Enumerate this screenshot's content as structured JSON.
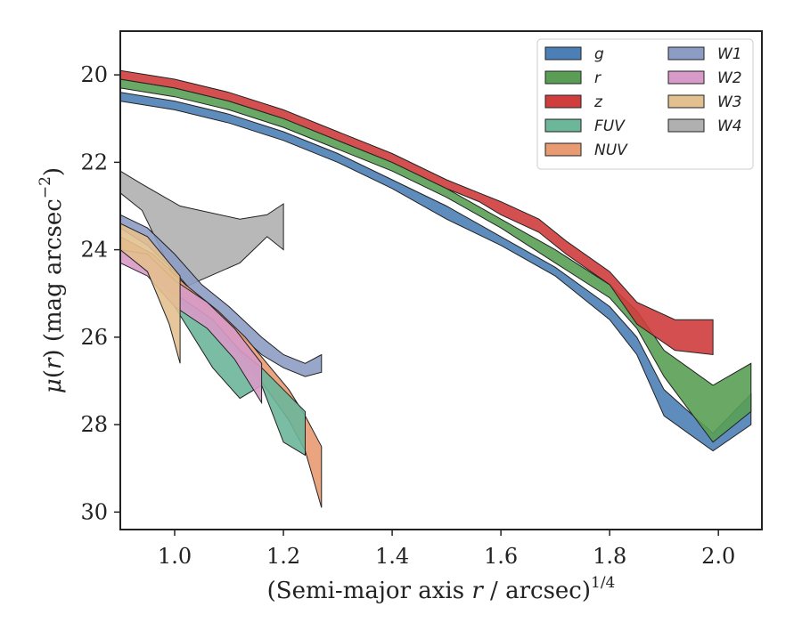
{
  "chart_data": {
    "type": "area",
    "xlabel_html": "(Semi-major axis <tspan font-style=\"italic\">r</tspan> / arcsec)<tspan dy=\"-12\" font-size=\"17\">1/4</tspan>",
    "xlabel": "(Semi-major axis r / arcsec)1/4",
    "ylabel": "μ(r) (mag arcsec−2)",
    "xlim": [
      0.9,
      2.08
    ],
    "ylim": [
      30.4,
      19.0
    ],
    "y_inverted": true,
    "grid": false,
    "x_ticks": [
      1.0,
      1.2,
      1.4,
      1.6,
      1.8,
      2.0
    ],
    "x_tick_labels": [
      "1.0",
      "1.2",
      "1.4",
      "1.6",
      "1.8",
      "2.0"
    ],
    "y_ticks": [
      20,
      22,
      24,
      26,
      28,
      30
    ],
    "y_tick_labels": [
      "20",
      "22",
      "24",
      "26",
      "28",
      "30"
    ],
    "legend": {
      "placement": "top-right",
      "columns": 2
    },
    "series": [
      {
        "name": "W4",
        "color": "#b0b0b0",
        "x": [
          0.9,
          0.94,
          1.01,
          1.12,
          1.17,
          1.2
        ],
        "lower": [
          22.2,
          22.5,
          23.0,
          23.3,
          23.2,
          22.95
        ],
        "upper": [
          22.7,
          23.1,
          24.9,
          24.3,
          23.7,
          24.0
        ]
      },
      {
        "name": "W1",
        "color": "#8d9cc4",
        "x": [
          0.9,
          0.95,
          1.0,
          1.05,
          1.1,
          1.16,
          1.2,
          1.24,
          1.27
        ],
        "lower": [
          23.2,
          23.5,
          24.1,
          24.8,
          25.3,
          26.0,
          26.4,
          26.6,
          26.4
        ],
        "upper": [
          23.5,
          23.9,
          24.5,
          25.2,
          25.7,
          26.4,
          26.7,
          26.9,
          26.8
        ]
      },
      {
        "name": "NUV",
        "color": "#e89a72",
        "x": [
          0.9,
          0.96,
          1.02,
          1.08,
          1.13,
          1.17,
          1.21,
          1.24,
          1.27
        ],
        "lower": [
          23.7,
          24.1,
          24.8,
          25.4,
          26.0,
          26.6,
          27.2,
          27.8,
          28.5
        ],
        "upper": [
          24.0,
          24.6,
          25.3,
          25.9,
          26.5,
          27.2,
          27.9,
          28.6,
          29.9
        ]
      },
      {
        "name": "FUV",
        "color": "#6cb69a",
        "x": [
          1.0,
          1.07,
          1.12,
          1.16,
          1.2,
          1.24
        ],
        "lower": [
          25.0,
          25.6,
          26.3,
          26.7,
          27.2,
          27.7
        ],
        "upper": [
          25.3,
          26.7,
          27.4,
          27.1,
          28.4,
          28.7
        ]
      },
      {
        "name": "W2",
        "color": "#d89ac8",
        "x": [
          0.9,
          0.95,
          1.0,
          1.06,
          1.11,
          1.16
        ],
        "lower": [
          24.0,
          24.1,
          24.7,
          25.2,
          25.8,
          26.6
        ],
        "upper": [
          24.3,
          24.6,
          25.3,
          25.8,
          26.5,
          27.5
        ]
      },
      {
        "name": "W3",
        "color": "#e3c090",
        "x": [
          0.9,
          0.95,
          0.99,
          1.01
        ],
        "lower": [
          23.4,
          23.7,
          24.3,
          24.6
        ],
        "upper": [
          24.0,
          24.5,
          25.7,
          26.6
        ]
      },
      {
        "name": "g",
        "color": "#4c7fb5",
        "x": [
          0.9,
          1.0,
          1.1,
          1.2,
          1.3,
          1.4,
          1.5,
          1.6,
          1.7,
          1.8,
          1.85,
          1.9,
          1.99,
          2.06
        ],
        "lower": [
          20.4,
          20.6,
          20.9,
          21.3,
          21.8,
          22.4,
          23.0,
          23.7,
          24.4,
          25.3,
          26.0,
          27.2,
          28.2,
          27.3
        ],
        "upper": [
          20.6,
          20.8,
          21.1,
          21.5,
          22.0,
          22.6,
          23.3,
          23.9,
          24.6,
          25.6,
          26.4,
          27.8,
          28.6,
          28.0
        ]
      },
      {
        "name": "r",
        "color": "#5a9e55",
        "x": [
          0.9,
          1.0,
          1.1,
          1.2,
          1.3,
          1.4,
          1.5,
          1.6,
          1.7,
          1.8,
          1.85,
          1.9,
          1.99,
          2.06
        ],
        "lower": [
          20.1,
          20.3,
          20.6,
          21.0,
          21.5,
          22.0,
          22.6,
          23.3,
          24.0,
          24.8,
          25.4,
          26.3,
          27.1,
          26.6
        ],
        "upper": [
          20.3,
          20.5,
          20.8,
          21.2,
          21.7,
          22.2,
          22.8,
          23.5,
          24.3,
          25.1,
          25.8,
          26.9,
          28.4,
          27.7
        ]
      },
      {
        "name": "z",
        "color": "#cf3d3d",
        "x": [
          0.9,
          1.0,
          1.1,
          1.2,
          1.3,
          1.4,
          1.5,
          1.56,
          1.6,
          1.67,
          1.72,
          1.8,
          1.85,
          1.92,
          1.99
        ],
        "lower": [
          19.9,
          20.1,
          20.4,
          20.8,
          21.3,
          21.8,
          22.4,
          22.7,
          22.9,
          23.3,
          23.8,
          24.5,
          25.2,
          25.6,
          25.6
        ],
        "upper": [
          20.1,
          20.3,
          20.6,
          21.0,
          21.5,
          22.0,
          22.6,
          22.9,
          23.2,
          23.6,
          24.1,
          24.8,
          25.7,
          26.3,
          26.4
        ]
      }
    ],
    "legend_order": [
      "g",
      "r",
      "z",
      "FUV",
      "NUV",
      "W1",
      "W2",
      "W3",
      "W4"
    ]
  }
}
